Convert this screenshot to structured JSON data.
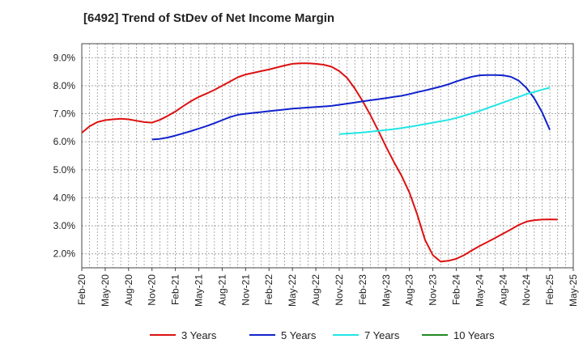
{
  "chart_data": {
    "type": "line",
    "title": "[6492]  Trend of StDev of Net Income Margin",
    "xlabel": "",
    "ylabel": "",
    "x_tick_labels": [
      "Feb-20",
      "May-20",
      "Aug-20",
      "Nov-20",
      "Feb-21",
      "May-21",
      "Aug-21",
      "Nov-21",
      "Feb-22",
      "May-22",
      "Aug-22",
      "Nov-22",
      "Feb-23",
      "May-23",
      "Aug-23",
      "Nov-23",
      "Feb-24",
      "May-24",
      "Aug-24",
      "Nov-24",
      "Feb-25",
      "May-25"
    ],
    "y_tick_labels": [
      "2.0%",
      "3.0%",
      "4.0%",
      "5.0%",
      "6.0%",
      "7.0%",
      "8.0%",
      "9.0%"
    ],
    "y_ticks": [
      2,
      3,
      4,
      5,
      6,
      7,
      8,
      9
    ],
    "ylim": [
      1.5,
      9.5
    ],
    "grid": true,
    "legend_position": "bottom",
    "series": [
      {
        "name": "3 Years",
        "color": "#dd1111",
        "points": [
          [
            0,
            6.32
          ],
          [
            1,
            6.55
          ],
          [
            2,
            6.7
          ],
          [
            3,
            6.77
          ],
          [
            4,
            6.8
          ],
          [
            5,
            6.82
          ],
          [
            6,
            6.8
          ],
          [
            7,
            6.75
          ],
          [
            8,
            6.7
          ],
          [
            9,
            6.68
          ],
          [
            10,
            6.78
          ],
          [
            11,
            6.92
          ],
          [
            12,
            7.08
          ],
          [
            13,
            7.27
          ],
          [
            14,
            7.45
          ],
          [
            15,
            7.6
          ],
          [
            16,
            7.72
          ],
          [
            17,
            7.85
          ],
          [
            18,
            8.0
          ],
          [
            19,
            8.15
          ],
          [
            20,
            8.3
          ],
          [
            21,
            8.4
          ],
          [
            22,
            8.46
          ],
          [
            23,
            8.52
          ],
          [
            24,
            8.58
          ],
          [
            25,
            8.65
          ],
          [
            26,
            8.72
          ],
          [
            27,
            8.78
          ],
          [
            28,
            8.8
          ],
          [
            29,
            8.8
          ],
          [
            30,
            8.78
          ],
          [
            31,
            8.75
          ],
          [
            32,
            8.68
          ],
          [
            33,
            8.52
          ],
          [
            34,
            8.28
          ],
          [
            35,
            7.9
          ],
          [
            36,
            7.45
          ],
          [
            37,
            6.95
          ],
          [
            38,
            6.4
          ],
          [
            39,
            5.82
          ],
          [
            40,
            5.28
          ],
          [
            41,
            4.78
          ],
          [
            42,
            4.18
          ],
          [
            43,
            3.4
          ],
          [
            44,
            2.5
          ],
          [
            45,
            1.95
          ],
          [
            46,
            1.72
          ],
          [
            47,
            1.75
          ],
          [
            48,
            1.82
          ],
          [
            49,
            1.95
          ],
          [
            50,
            2.12
          ],
          [
            51,
            2.28
          ],
          [
            52,
            2.42
          ],
          [
            53,
            2.57
          ],
          [
            54,
            2.72
          ],
          [
            55,
            2.87
          ],
          [
            56,
            3.03
          ],
          [
            57,
            3.15
          ],
          [
            58,
            3.2
          ],
          [
            59,
            3.22
          ],
          [
            60,
            3.23
          ],
          [
            61,
            3.22
          ]
        ]
      },
      {
        "name": "5 Years",
        "color": "#1122cc",
        "points": [
          [
            9,
            6.08
          ],
          [
            10,
            6.1
          ],
          [
            11,
            6.15
          ],
          [
            12,
            6.22
          ],
          [
            13,
            6.3
          ],
          [
            14,
            6.38
          ],
          [
            15,
            6.47
          ],
          [
            16,
            6.56
          ],
          [
            17,
            6.66
          ],
          [
            18,
            6.77
          ],
          [
            19,
            6.88
          ],
          [
            20,
            6.96
          ],
          [
            21,
            7.0
          ],
          [
            22,
            7.03
          ],
          [
            23,
            7.06
          ],
          [
            24,
            7.09
          ],
          [
            25,
            7.12
          ],
          [
            26,
            7.15
          ],
          [
            27,
            7.18
          ],
          [
            28,
            7.2
          ],
          [
            29,
            7.22
          ],
          [
            30,
            7.24
          ],
          [
            31,
            7.26
          ],
          [
            32,
            7.28
          ],
          [
            33,
            7.32
          ],
          [
            34,
            7.36
          ],
          [
            35,
            7.4
          ],
          [
            36,
            7.44
          ],
          [
            37,
            7.48
          ],
          [
            38,
            7.52
          ],
          [
            39,
            7.56
          ],
          [
            40,
            7.6
          ],
          [
            41,
            7.64
          ],
          [
            42,
            7.7
          ],
          [
            43,
            7.77
          ],
          [
            44,
            7.83
          ],
          [
            45,
            7.9
          ],
          [
            46,
            7.97
          ],
          [
            47,
            8.05
          ],
          [
            48,
            8.15
          ],
          [
            49,
            8.24
          ],
          [
            50,
            8.32
          ],
          [
            51,
            8.37
          ],
          [
            52,
            8.38
          ],
          [
            53,
            8.38
          ],
          [
            54,
            8.37
          ],
          [
            55,
            8.32
          ],
          [
            56,
            8.18
          ],
          [
            57,
            7.92
          ],
          [
            58,
            7.55
          ],
          [
            59,
            7.05
          ],
          [
            60,
            6.42
          ]
        ]
      },
      {
        "name": "7 Years",
        "color": "#22e5e5",
        "points": [
          [
            33,
            6.27
          ],
          [
            34,
            6.29
          ],
          [
            35,
            6.31
          ],
          [
            36,
            6.33
          ],
          [
            37,
            6.36
          ],
          [
            38,
            6.39
          ],
          [
            39,
            6.42
          ],
          [
            40,
            6.45
          ],
          [
            41,
            6.49
          ],
          [
            42,
            6.53
          ],
          [
            43,
            6.58
          ],
          [
            44,
            6.63
          ],
          [
            45,
            6.68
          ],
          [
            46,
            6.73
          ],
          [
            47,
            6.78
          ],
          [
            48,
            6.85
          ],
          [
            49,
            6.93
          ],
          [
            50,
            7.01
          ],
          [
            51,
            7.1
          ],
          [
            52,
            7.2
          ],
          [
            53,
            7.3
          ],
          [
            54,
            7.4
          ],
          [
            55,
            7.5
          ],
          [
            56,
            7.6
          ],
          [
            57,
            7.7
          ],
          [
            58,
            7.78
          ],
          [
            59,
            7.86
          ],
          [
            60,
            7.93
          ]
        ]
      },
      {
        "name": "10 Years",
        "color": "#228822",
        "points": []
      }
    ]
  }
}
